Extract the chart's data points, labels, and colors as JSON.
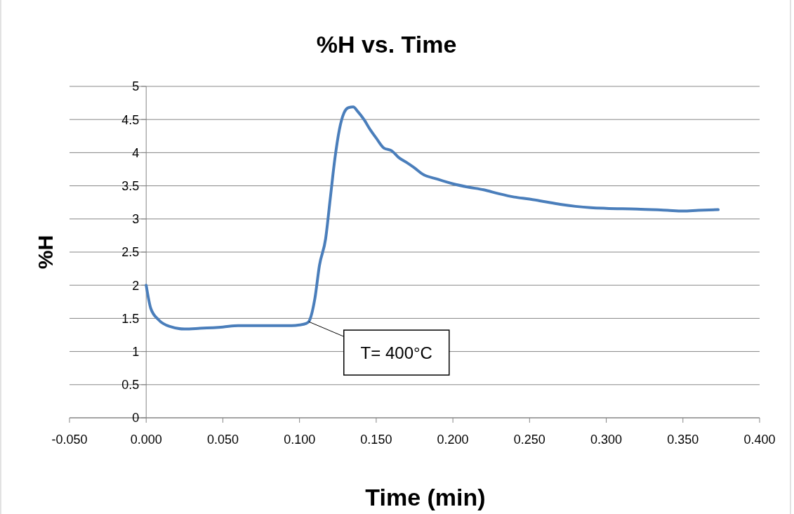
{
  "chart_data": {
    "type": "line",
    "title": "%H vs. Time",
    "xlabel": "Time (min)",
    "ylabel": "%H",
    "x": [
      0,
      0.003,
      0.008,
      0.015,
      0.025,
      0.035,
      0.05,
      0.06,
      0.08,
      0.095,
      0.1,
      0.104,
      0.106,
      0.11,
      0.113,
      0.117,
      0.12,
      0.123,
      0.126,
      0.129,
      0.132,
      0.135,
      0.138,
      0.142,
      0.146,
      0.15,
      0.155,
      0.16,
      0.165,
      0.17,
      0.175,
      0.18,
      0.19,
      0.2,
      0.21,
      0.22,
      0.23,
      0.24,
      0.25,
      0.26,
      0.27,
      0.28,
      0.29,
      0.3,
      0.32,
      0.34,
      0.35,
      0.36,
      0.373
    ],
    "series": [
      {
        "color": "#4a7ebb",
        "values": [
          2.0,
          1.65,
          1.48,
          1.38,
          1.34,
          1.35,
          1.37,
          1.39,
          1.39,
          1.39,
          1.4,
          1.42,
          1.45,
          1.8,
          2.3,
          2.7,
          3.3,
          3.9,
          4.35,
          4.6,
          4.68,
          4.69,
          4.62,
          4.5,
          4.35,
          4.22,
          4.07,
          4.03,
          3.92,
          3.85,
          3.77,
          3.68,
          3.6,
          3.53,
          3.48,
          3.44,
          3.38,
          3.33,
          3.3,
          3.26,
          3.22,
          3.19,
          3.17,
          3.16,
          3.15,
          3.13,
          3.12,
          3.13,
          3.14
        ]
      }
    ],
    "xlim": [
      -0.05,
      0.4
    ],
    "xticks": [
      {
        "value": -0.05,
        "label": "-0.050"
      },
      {
        "value": 0,
        "label": "0.000"
      },
      {
        "value": 0.05,
        "label": "0.050"
      },
      {
        "value": 0.1,
        "label": "0.100"
      },
      {
        "value": 0.15,
        "label": "0.150"
      },
      {
        "value": 0.2,
        "label": "0.200"
      },
      {
        "value": 0.25,
        "label": "0.250"
      },
      {
        "value": 0.3,
        "label": "0.300"
      },
      {
        "value": 0.35,
        "label": "0.350"
      },
      {
        "value": 0.4,
        "label": "0.400"
      }
    ],
    "ylim": [
      0,
      5
    ],
    "yticks": [
      0,
      0.5,
      1,
      1.5,
      2,
      2.5,
      3,
      3.5,
      4,
      4.5,
      5
    ],
    "grid": "y",
    "marker": "none",
    "line_style": "solid",
    "annotations": [
      {
        "text": "T= 400°C",
        "x": 0.106,
        "y": 1.45
      }
    ]
  }
}
